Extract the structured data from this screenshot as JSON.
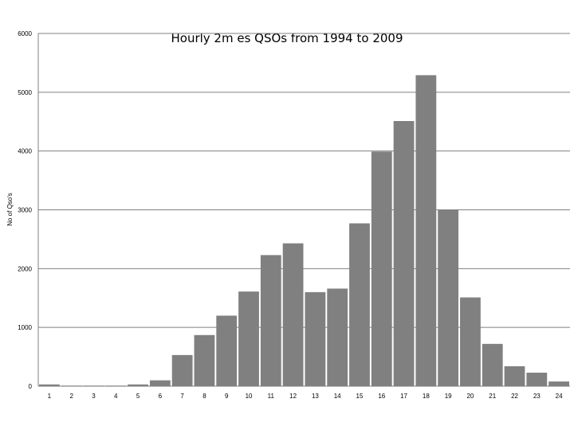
{
  "chart_data": {
    "type": "bar",
    "title": "Hourly 2m es QSOs from 1994 to 2009",
    "xlabel": "",
    "ylabel": "No of Qso's",
    "ylim": [
      0,
      6000
    ],
    "yticks": [
      0,
      1000,
      2000,
      3000,
      4000,
      5000,
      6000
    ],
    "grid": true,
    "legend": "none",
    "bar_color": "#808080",
    "categories": [
      "1",
      "2",
      "3",
      "4",
      "5",
      "6",
      "7",
      "8",
      "9",
      "10",
      "11",
      "12",
      "13",
      "14",
      "15",
      "16",
      "17",
      "18",
      "19",
      "20",
      "21",
      "22",
      "23",
      "24"
    ],
    "values": [
      30,
      10,
      10,
      10,
      30,
      100,
      530,
      870,
      1200,
      1610,
      2230,
      2430,
      1600,
      1660,
      2770,
      3990,
      4510,
      5290,
      3000,
      1510,
      720,
      340,
      230,
      80
    ]
  }
}
